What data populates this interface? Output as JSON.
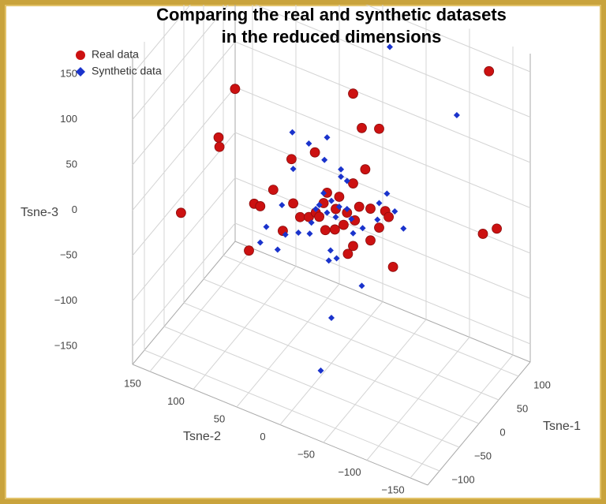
{
  "chart_data": {
    "type": "scatter3d",
    "title": [
      "Comparing the real and synthetic datasets",
      "in the reduced dimensions"
    ],
    "xlabel": "Tsne-1",
    "ylabel": "Tsne-2",
    "zlabel": "Tsne-3",
    "xlim": [
      -130,
      130
    ],
    "ylim": [
      -170,
      170
    ],
    "zlim": [
      -170,
      170
    ],
    "xticks": [
      {
        "value": -100,
        "label": "−100"
      },
      {
        "value": -50,
        "label": "−50"
      },
      0,
      50,
      100
    ],
    "yticks": [
      {
        "value": -150,
        "label": "−150"
      },
      {
        "value": -100,
        "label": "−100"
      },
      {
        "value": -50,
        "label": "−50"
      },
      0,
      50,
      100,
      150
    ],
    "zticks": [
      {
        "value": -150,
        "label": "−150"
      },
      {
        "value": -100,
        "label": "−100"
      },
      {
        "value": -50,
        "label": "−50"
      },
      0,
      50,
      100,
      150
    ],
    "grid": true,
    "legend": "top-left",
    "series": [
      {
        "name": "Real data",
        "color": "#cc1111",
        "marker": "circle",
        "x": [
          120,
          0,
          0,
          0,
          0,
          0,
          0,
          0,
          0,
          0,
          0,
          0,
          -60,
          0,
          0,
          0,
          0,
          0,
          0,
          0,
          0,
          0,
          0,
          0,
          0,
          0,
          0,
          0,
          0,
          0,
          0,
          0,
          0,
          0,
          0,
          120,
          120,
          0,
          0,
          0,
          0,
          0
        ],
        "y": [
          -127,
          111,
          -25,
          -35,
          -55,
          130,
          129,
          19,
          46,
          -39,
          -25,
          67,
          146,
          89,
          82,
          44,
          36,
          26,
          5,
          -9,
          9,
          -5,
          -18,
          18,
          -32,
          -45,
          -62,
          -66,
          -27,
          7,
          -4,
          56,
          95,
          -25,
          -19,
          -120,
          -136,
          -71,
          -55,
          14,
          -14,
          -45
        ],
        "z": [
          139,
          89,
          137,
          103,
          110,
          28,
          18,
          55,
          37,
          59,
          38,
          -5,
          -30,
          -29,
          -29,
          -11,
          -23,
          -19,
          16,
          17,
          3,
          2,
          3,
          -11,
          15,
          18,
          22,
          17,
          -2,
          -26,
          -21,
          -46,
          -83,
          -31,
          -42,
          -43,
          -31,
          -36,
          1,
          -14,
          -12,
          -17
        ]
      },
      {
        "name": "Synthetic data",
        "color": "#1a33cc",
        "marker": "diamond",
        "x": [
          60,
          100,
          0,
          0,
          0,
          0,
          0,
          0,
          0,
          0,
          0,
          0,
          0,
          0,
          0,
          0,
          0,
          0,
          0,
          0,
          0,
          0,
          0,
          0,
          0,
          0,
          0,
          -60,
          0,
          0,
          0,
          0,
          0,
          0,
          0,
          0,
          0,
          0,
          0,
          0
        ],
        "y": [
          -40,
          -99,
          45,
          26,
          5,
          44,
          8,
          -11,
          -11,
          -18,
          57,
          -64,
          -55,
          -73,
          -83,
          -53,
          75,
          53,
          38,
          82,
          62,
          25,
          1,
          -6,
          3,
          -35,
          0,
          -15,
          14,
          0,
          -9,
          5,
          -18,
          -5,
          9,
          18,
          -23,
          23,
          -25,
          -36
        ],
        "z": [
          163,
          90,
          67,
          62,
          77,
          27,
          51,
          48,
          40,
          38,
          -18,
          42,
          28,
          26,
          11,
          9,
          -49,
          -49,
          -41,
          -69,
          -69,
          -37,
          -46,
          -52,
          -58,
          -71,
          -120,
          -141,
          -1,
          9,
          6,
          -6,
          7,
          -7,
          14,
          -7,
          -2,
          -24,
          -17,
          -7
        ]
      }
    ]
  }
}
